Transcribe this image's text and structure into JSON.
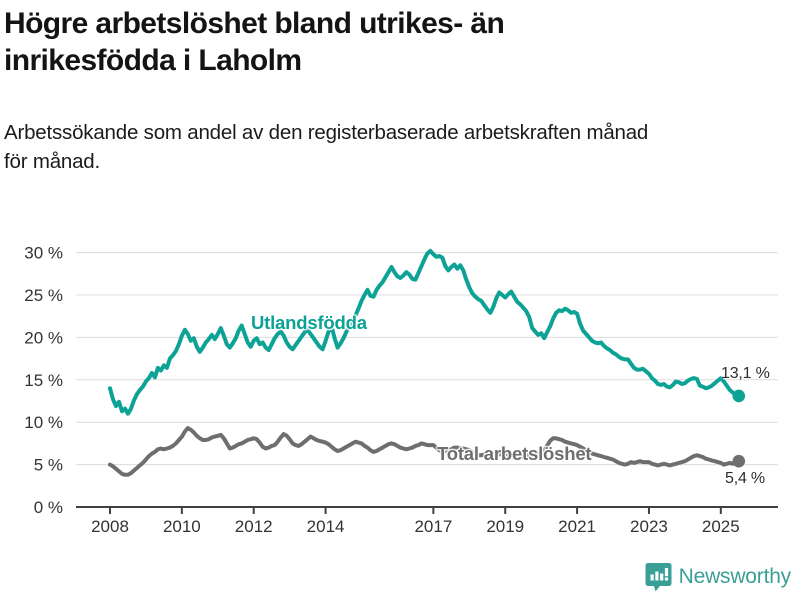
{
  "header": {
    "title": "Högre arbetslöshet bland utrikes- än\ninrikesfödda i Laholm",
    "subtitle": "Arbetssökande som andel av den registerbaserade arbetskraften månad\nför månad."
  },
  "footer": {
    "brand": "Newsworthy",
    "logo_icon": "bar-chart-pin-icon",
    "brand_color": "#3a9f97"
  },
  "chart_data": {
    "type": "line",
    "title": "Högre arbetslöshet bland utrikes- än inrikesfödda i Laholm",
    "subtitle": "Arbetssökande som andel av den registerbaserade arbetskraften månad för månad.",
    "grid": true,
    "legend_position": "inline-labels",
    "x_axis": {
      "ticks": [
        2008,
        2010,
        2012,
        2014,
        2017,
        2019,
        2021,
        2023,
        2025
      ],
      "range_years": [
        2007.0,
        2026.6
      ]
    },
    "y_axis": {
      "tick_values": [
        0,
        5,
        10,
        15,
        20,
        25,
        30
      ],
      "ticks": [
        "0 %",
        "5 %",
        "10 %",
        "15 %",
        "20 %",
        "25 %",
        "30 %"
      ],
      "ylim": [
        0,
        32
      ],
      "unit": "%"
    },
    "series": [
      {
        "id": "utlandsfodda",
        "name": "Utlandsfödda",
        "color": "#0da296",
        "start_year": 2008,
        "interval_months": 1,
        "end_label": "13,1 %",
        "end_value": 13.1,
        "values": [
          14.0,
          12.7,
          11.9,
          12.4,
          11.3,
          11.6,
          11.0,
          11.6,
          12.6,
          13.3,
          13.8,
          14.2,
          14.8,
          15.2,
          15.8,
          15.3,
          16.4,
          16.1,
          16.7,
          16.4,
          17.5,
          17.9,
          18.4,
          19.2,
          20.2,
          20.9,
          20.4,
          19.6,
          19.9,
          18.9,
          18.3,
          18.8,
          19.4,
          19.8,
          20.3,
          19.8,
          20.4,
          21.1,
          20.2,
          19.2,
          18.8,
          19.3,
          19.9,
          20.8,
          21.4,
          20.4,
          19.4,
          18.9,
          19.6,
          19.9,
          19.2,
          19.4,
          18.8,
          18.5,
          19.2,
          19.9,
          20.4,
          20.7,
          20.2,
          19.4,
          18.9,
          18.6,
          19.1,
          19.6,
          20.1,
          20.6,
          20.9,
          20.4,
          19.9,
          19.4,
          18.9,
          18.6,
          19.6,
          20.7,
          21.3,
          19.9,
          18.8,
          19.3,
          19.9,
          20.7,
          21.4,
          22.0,
          22.6,
          23.4,
          24.3,
          25.0,
          25.6,
          24.9,
          24.8,
          25.6,
          26.1,
          26.5,
          27.1,
          27.7,
          28.3,
          27.7,
          27.2,
          27.0,
          27.3,
          27.7,
          27.4,
          26.9,
          26.8,
          27.6,
          28.4,
          29.2,
          29.9,
          30.2,
          29.8,
          29.5,
          29.6,
          29.4,
          28.4,
          27.9,
          28.3,
          28.6,
          28.1,
          28.5,
          27.9,
          26.8,
          25.9,
          25.2,
          24.8,
          24.5,
          24.3,
          23.8,
          23.3,
          22.9,
          23.6,
          24.6,
          25.3,
          25.0,
          24.7,
          25.1,
          25.4,
          24.8,
          24.2,
          23.9,
          23.5,
          23.1,
          22.4,
          21.1,
          20.7,
          20.3,
          20.5,
          19.9,
          20.6,
          21.3,
          22.2,
          22.9,
          23.2,
          23.1,
          23.4,
          23.2,
          22.9,
          23.0,
          22.8,
          21.6,
          20.8,
          20.4,
          20.0,
          19.6,
          19.4,
          19.3,
          19.4,
          19.0,
          18.7,
          18.5,
          18.2,
          18.0,
          17.7,
          17.5,
          17.4,
          17.4,
          16.9,
          16.4,
          16.2,
          16.2,
          16.3,
          16.0,
          15.7,
          15.2,
          14.9,
          14.5,
          14.4,
          14.5,
          14.2,
          14.1,
          14.4,
          14.8,
          14.7,
          14.5,
          14.6,
          14.9,
          15.1,
          15.2,
          15.1,
          14.3,
          14.2,
          14.0,
          14.1,
          14.3,
          14.6,
          14.9,
          15.2,
          14.8,
          14.3,
          13.8,
          13.5,
          13.2,
          13.1
        ]
      },
      {
        "id": "total",
        "name": "Total arbetslöshet",
        "color": "#6e6e6e",
        "start_year": 2008,
        "interval_months": 1,
        "end_label": "5,4 %",
        "end_value": 5.4,
        "values": [
          5.0,
          4.8,
          4.5,
          4.2,
          3.9,
          3.8,
          3.8,
          4.0,
          4.3,
          4.6,
          4.9,
          5.2,
          5.6,
          6.0,
          6.3,
          6.5,
          6.8,
          6.9,
          6.8,
          6.9,
          7.0,
          7.2,
          7.5,
          7.9,
          8.3,
          8.9,
          9.3,
          9.1,
          8.8,
          8.4,
          8.1,
          7.9,
          7.9,
          8.0,
          8.2,
          8.3,
          8.4,
          8.5,
          8.1,
          7.5,
          6.9,
          7.0,
          7.2,
          7.4,
          7.5,
          7.7,
          7.9,
          8.0,
          8.1,
          8.0,
          7.6,
          7.1,
          6.9,
          7.0,
          7.2,
          7.3,
          7.7,
          8.2,
          8.6,
          8.4,
          8.0,
          7.5,
          7.3,
          7.2,
          7.4,
          7.7,
          8.0,
          8.3,
          8.1,
          7.9,
          7.8,
          7.7,
          7.6,
          7.4,
          7.1,
          6.8,
          6.6,
          6.7,
          6.9,
          7.1,
          7.3,
          7.5,
          7.7,
          7.6,
          7.5,
          7.2,
          7.0,
          6.7,
          6.5,
          6.6,
          6.8,
          7.0,
          7.2,
          7.4,
          7.5,
          7.4,
          7.2,
          7.0,
          6.9,
          6.8,
          6.9,
          7.0,
          7.2,
          7.3,
          7.5,
          7.4,
          7.3,
          7.3,
          7.3,
          7.0,
          6.7,
          6.5,
          6.6,
          6.7,
          6.8,
          7.0,
          7.0,
          6.9,
          6.9,
          6.8,
          6.7,
          6.5,
          6.3,
          6.1,
          6.1,
          6.2,
          6.3,
          6.4,
          6.3,
          6.2,
          6.2,
          6.3,
          6.3,
          6.1,
          6.0,
          5.8,
          5.8,
          5.9,
          6.0,
          6.1,
          6.1,
          6.2,
          6.2,
          6.3,
          6.4,
          6.6,
          7.2,
          7.8,
          8.1,
          8.1,
          8.0,
          7.9,
          7.7,
          7.6,
          7.5,
          7.4,
          7.3,
          7.1,
          6.9,
          6.7,
          6.5,
          6.3,
          6.2,
          6.1,
          6.0,
          5.9,
          5.8,
          5.7,
          5.6,
          5.4,
          5.2,
          5.1,
          5.0,
          5.1,
          5.3,
          5.2,
          5.3,
          5.4,
          5.3,
          5.3,
          5.3,
          5.1,
          5.0,
          4.9,
          5.0,
          5.1,
          5.0,
          4.9,
          5.0,
          5.1,
          5.2,
          5.3,
          5.4,
          5.6,
          5.8,
          6.0,
          6.1,
          6.0,
          5.9,
          5.7,
          5.6,
          5.5,
          5.4,
          5.3,
          5.2,
          5.0,
          5.1,
          5.2,
          5.1,
          5.3,
          5.4
        ]
      }
    ],
    "style": {
      "gridline_color": "#dcdcdc",
      "axis_color": "#404040",
      "tick_label_color": "#333333",
      "line_width": 4
    }
  }
}
